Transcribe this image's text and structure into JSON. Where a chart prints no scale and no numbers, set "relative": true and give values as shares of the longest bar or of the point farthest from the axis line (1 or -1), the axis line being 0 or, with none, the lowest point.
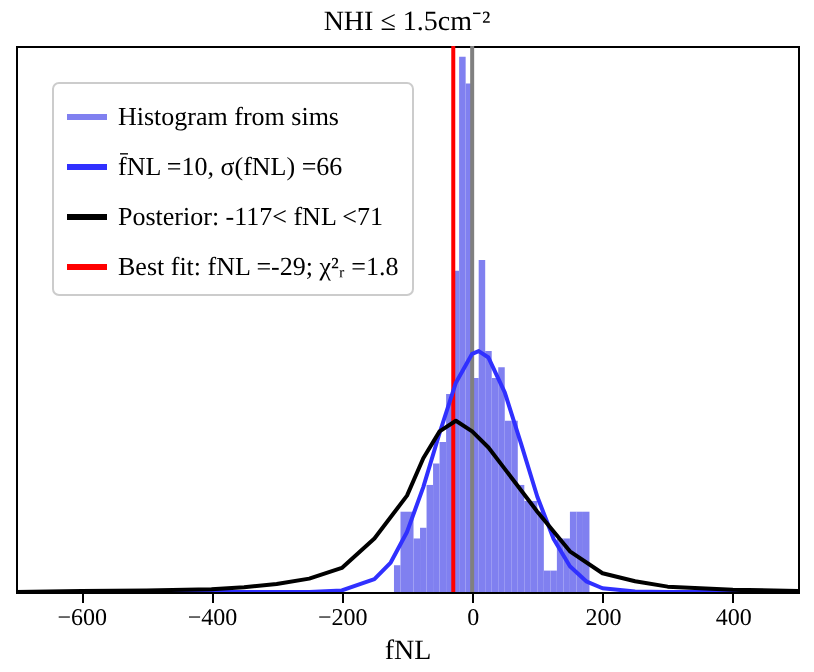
{
  "chart_data": {
    "type": "histogram",
    "title": "NHI ≤ 1.5cm⁻²",
    "xlabel": "fNL",
    "relative": true,
    "xlim": [
      -700,
      500
    ],
    "xticks": [
      -600,
      -400,
      -200,
      0,
      200,
      400
    ],
    "grid": false,
    "legend": "top left",
    "series": [
      {
        "name": "Histogram from sims",
        "color": "#8080f0",
        "bins": [
          -120,
          -110,
          -100,
          -90,
          -80,
          -70,
          -60,
          -50,
          -40,
          -30,
          -20,
          -10,
          0,
          10,
          20,
          30,
          40,
          50,
          60,
          70,
          80,
          90,
          100,
          110,
          120,
          130,
          140,
          150,
          160,
          170,
          180
        ],
        "values": [
          0.05,
          0.15,
          0.15,
          0.1,
          0.12,
          0.2,
          0.24,
          0.28,
          0.37,
          0.6,
          1.0,
          0.95,
          0.4,
          0.62,
          0.45,
          0.4,
          0.42,
          0.32,
          0.32,
          0.2,
          0.17,
          0.17,
          0.15,
          0.04,
          0.04,
          0.1,
          0.1,
          0.15,
          0.15,
          0.15
        ]
      },
      {
        "type": "line",
        "name": "f̄NL =10, σ(fNL) =66",
        "color": "#3030ff",
        "x": [
          -700,
          -250,
          -200,
          -150,
          -125,
          -100,
          -75,
          -50,
          -25,
          0,
          10,
          25,
          50,
          75,
          100,
          125,
          150,
          175,
          200,
          250,
          300,
          500
        ],
        "values": [
          0,
          0,
          0.003,
          0.024,
          0.055,
          0.112,
          0.196,
          0.297,
          0.391,
          0.445,
          0.45,
          0.438,
          0.373,
          0.277,
          0.178,
          0.099,
          0.048,
          0.02,
          0.007,
          0.001,
          0,
          0
        ]
      },
      {
        "type": "line",
        "name": "Posterior: -117< fNL <71",
        "color": "#000000",
        "x": [
          -700,
          -600,
          -500,
          -400,
          -350,
          -300,
          -250,
          -200,
          -150,
          -100,
          -75,
          -50,
          -25,
          0,
          25,
          50,
          75,
          100,
          150,
          200,
          250,
          300,
          400,
          500
        ],
        "values": [
          0,
          0.002,
          0.003,
          0.005,
          0.009,
          0.015,
          0.025,
          0.045,
          0.1,
          0.18,
          0.25,
          0.3,
          0.32,
          0.3,
          0.27,
          0.23,
          0.19,
          0.15,
          0.076,
          0.035,
          0.02,
          0.01,
          0.004,
          0.002
        ]
      }
    ],
    "ref_lines": [
      {
        "axis": "x",
        "value": -29,
        "label": "Best fit: fNL =-29; χ²ᵣ =1.8",
        "color": "#ff0000"
      },
      {
        "axis": "x",
        "value": 0,
        "color": "#808080"
      }
    ]
  }
}
